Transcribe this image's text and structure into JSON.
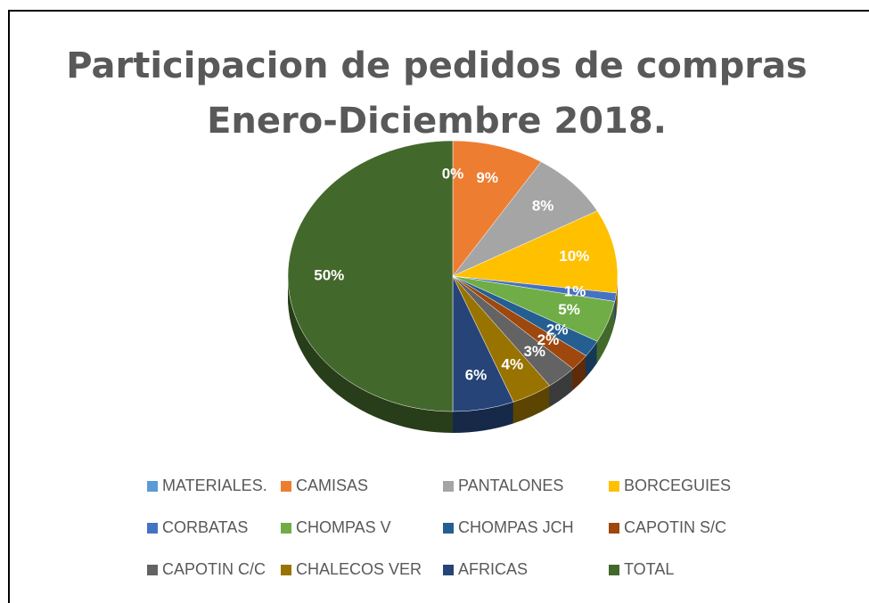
{
  "chart_data": {
    "type": "pie",
    "title": [
      "Participacion de pedidos de compras",
      "Enero-Diciembre 2018."
    ],
    "categories": [
      "MATERIALES.",
      "CAMISAS",
      "PANTALONES",
      "BORCEGUIES",
      "CORBATAS",
      "CHOMPAS V",
      "CHOMPAS JCH",
      "CAPOTIN S/C",
      "CAPOTIN C/C",
      "CHALECOS VER",
      "AFRICAS",
      "TOTAL"
    ],
    "values": [
      0,
      9,
      8,
      10,
      1,
      5,
      2,
      2,
      3,
      4,
      6,
      50
    ],
    "value_labels": [
      "0%",
      "9%",
      "8%",
      "10%",
      "1%",
      "5%",
      "2%",
      "2%",
      "3%",
      "4%",
      "6%",
      "50%"
    ],
    "colors": [
      "#5b9bd5",
      "#ed7d31",
      "#a5a5a5",
      "#ffc000",
      "#4472c4",
      "#70ad47",
      "#255e91",
      "#9e480e",
      "#636363",
      "#997300",
      "#264478",
      "#43682b"
    ],
    "legend": "bottom"
  }
}
